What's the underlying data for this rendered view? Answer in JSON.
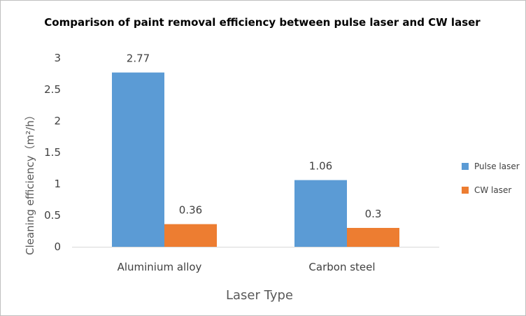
{
  "chart_data": {
    "type": "bar",
    "title": "Comparison of paint removal efficiency between pulse laser and CW laser",
    "xlabel": "Laser Type",
    "ylabel": "Cleaning efficiency（m²/h）",
    "categories": [
      "Aluminium alloy",
      "Carbon steel"
    ],
    "series": [
      {
        "name": "Pulse laser",
        "values": [
          2.77,
          1.06
        ],
        "labels": [
          "2.77",
          "1.06"
        ],
        "color": "#5b9bd5"
      },
      {
        "name": "CW laser",
        "values": [
          0.36,
          0.3
        ],
        "labels": [
          "0.36",
          "0.3"
        ],
        "color": "#ed7d31"
      }
    ],
    "ylim": [
      0,
      3
    ],
    "yticks": [
      "0",
      "0.5",
      "1",
      "1.5",
      "2",
      "2.5",
      "3"
    ],
    "ytick_values": [
      0,
      0.5,
      1,
      1.5,
      2,
      2.5,
      3
    ],
    "grid": false,
    "legend_position": "right",
    "axis_color": "#d9d9d9"
  }
}
